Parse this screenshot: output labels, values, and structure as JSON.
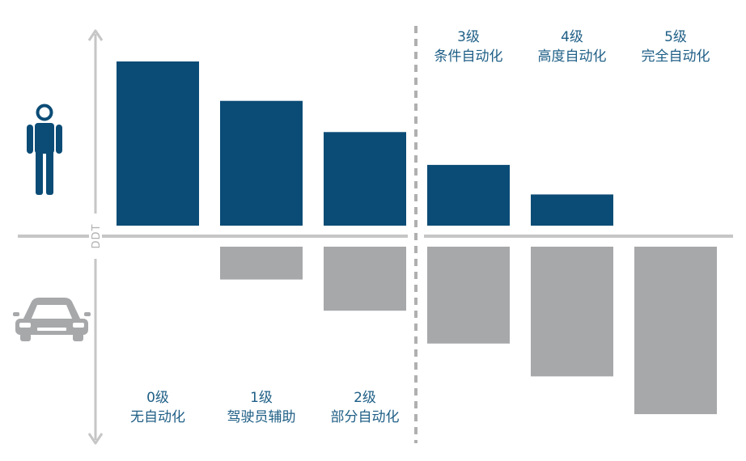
{
  "chart_data": {
    "type": "bar",
    "axis_label": "DDT",
    "ylim": [
      -6,
      6
    ],
    "levels": [
      {
        "level": "0级",
        "name": "无自动化"
      },
      {
        "level": "1级",
        "name": "驾驶员辅助"
      },
      {
        "level": "2级",
        "name": "部分自动化"
      },
      {
        "level": "3级",
        "name": "条件自动化"
      },
      {
        "level": "4级",
        "name": "高度自动化"
      },
      {
        "level": "5级",
        "name": "完全自动化"
      }
    ],
    "series": [
      {
        "values": [
          5.0,
          3.8,
          2.85,
          1.85,
          0.95,
          0
        ]
      },
      {
        "values": [
          0,
          1.0,
          1.95,
          2.95,
          3.95,
          5.1
        ]
      }
    ]
  },
  "colors": {
    "human": "#0b4c76",
    "vehicle": "#a7a8aa",
    "axis": "#c6c6c6",
    "label": "#1f5f86",
    "axis_label": "#b0b0b0"
  },
  "icons": {
    "top_row": "person-icon",
    "bottom_row": "car-icon"
  }
}
